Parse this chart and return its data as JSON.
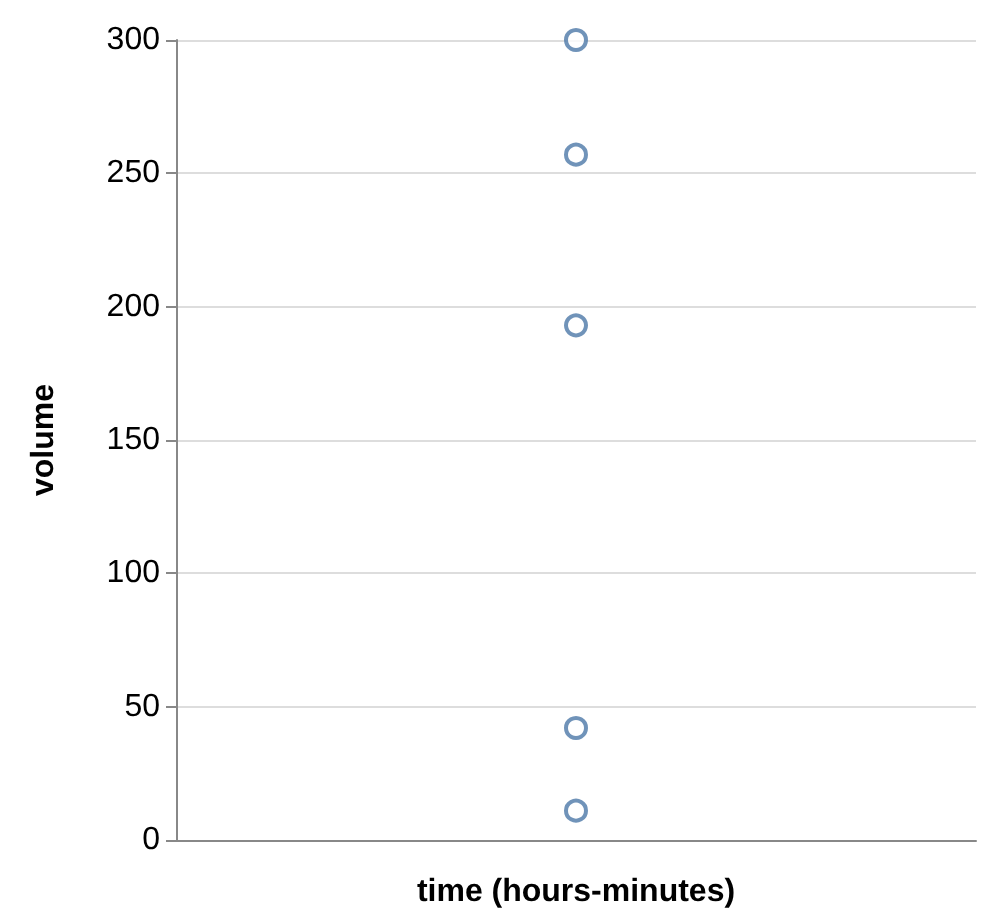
{
  "chart_data": {
    "type": "scatter",
    "xlabel": "time (hours-minutes)",
    "ylabel": "volume",
    "categories": [
      null
    ],
    "series": [
      {
        "color": "#4c78a8",
        "values": [
          300
        ]
      },
      {
        "color": "#4c78a8",
        "values": [
          257
        ]
      },
      {
        "color": "#4c78a8",
        "values": [
          193
        ]
      },
      {
        "color": "#4c78a8",
        "values": [
          42
        ]
      },
      {
        "color": "#4c78a8",
        "values": [
          11
        ]
      }
    ],
    "ylim": [
      0,
      300
    ],
    "yticks": [
      0,
      50,
      100,
      150,
      200,
      250,
      300
    ],
    "grid": "y",
    "marker": "circle"
  }
}
